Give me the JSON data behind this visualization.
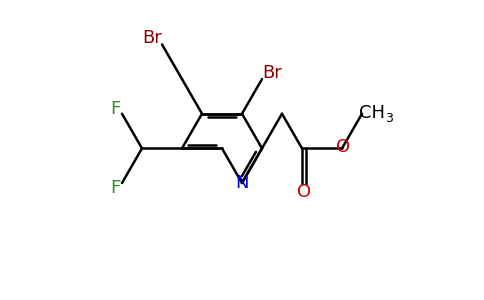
{
  "background_color": "#ffffff",
  "figsize": [
    4.84,
    3.0
  ],
  "dpi": 100,
  "atom_colors": {
    "Br": "#8b0000",
    "F": "#2d8b2d",
    "N": "#0000cc",
    "O": "#cc0000",
    "C": "#000000"
  },
  "bond_color": "#000000",
  "bond_lw": 1.8,
  "font_size": 13.5
}
